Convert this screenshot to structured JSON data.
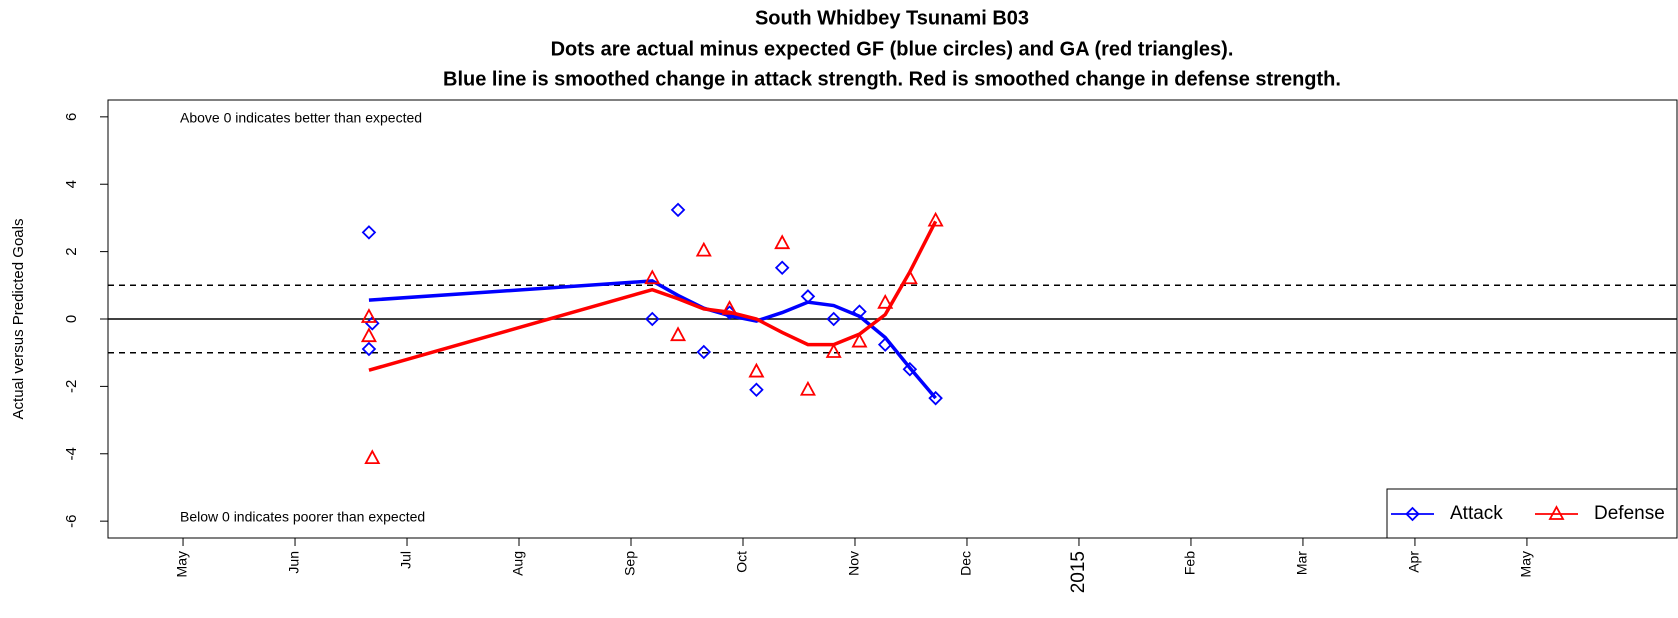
{
  "chart_data": {
    "type": "line",
    "title": "South Whidbey Tsunami B03",
    "subtitle": [
      "Dots are actual minus expected GF (blue circles) and GA (red triangles).",
      "Blue line is smoothed change in attack strength. Red is smoothed change in defense strength."
    ],
    "y_label": "Actual versus Predicted Goals",
    "annotations": [
      "Above 0 indicates better than expected",
      "Below 0 indicates poorer than expected"
    ],
    "xlim": [
      -0.67,
      13.34
    ],
    "ylim": [
      -6.5,
      6.5
    ],
    "xticks": [
      {
        "value": 0,
        "label": "May"
      },
      {
        "value": 1,
        "label": "Jun"
      },
      {
        "value": 2,
        "label": "Jul"
      },
      {
        "value": 3,
        "label": "Aug"
      },
      {
        "value": 4,
        "label": "Sep"
      },
      {
        "value": 5,
        "label": "Oct"
      },
      {
        "value": 6,
        "label": "Nov"
      },
      {
        "value": 7,
        "label": "Dec"
      },
      {
        "value": 8,
        "label": "2015"
      },
      {
        "value": 9,
        "label": "Feb"
      },
      {
        "value": 10,
        "label": "Mar"
      },
      {
        "value": 11,
        "label": "Apr"
      },
      {
        "value": 12,
        "label": "May"
      }
    ],
    "yticks": [
      -6,
      -4,
      -2,
      0,
      2,
      4,
      6
    ],
    "hlines": [
      {
        "value": 0,
        "style": "solid"
      },
      {
        "value": 1,
        "style": "dashed"
      },
      {
        "value": -1,
        "style": "dashed"
      }
    ],
    "legend": "bottom-right",
    "series": [
      {
        "name": "Attack",
        "color": "#0000ff",
        "marker": "diamond",
        "x": [
          1.66,
          4.19,
          4.42,
          4.65,
          4.88,
          5.12,
          5.35,
          5.58,
          5.81,
          6.04,
          6.27,
          6.49,
          6.72
        ],
        "values": [
          0.56,
          1.13,
          0.7,
          0.32,
          0.1,
          -0.06,
          0.19,
          0.5,
          0.4,
          0.08,
          -0.55,
          -1.45,
          -2.35
        ],
        "points_x": [
          1.66,
          1.69,
          1.66,
          4.19,
          4.42,
          4.65,
          4.88,
          5.12,
          5.35,
          5.58,
          5.81,
          6.04,
          6.27,
          6.49,
          6.72
        ],
        "points": [
          2.57,
          -0.13,
          -0.89,
          0,
          3.24,
          -0.98,
          0.19,
          -2.1,
          1.52,
          0.67,
          0,
          0.22,
          -0.76,
          -1.49,
          -2.35
        ]
      },
      {
        "name": "Defense",
        "color": "#ff0000",
        "marker": "triangle",
        "x": [
          1.66,
          4.19,
          4.42,
          4.65,
          4.88,
          5.12,
          5.35,
          5.58,
          5.81,
          6.04,
          6.27,
          6.49,
          6.72
        ],
        "values": [
          -1.52,
          0.87,
          0.6,
          0.3,
          0.2,
          0,
          -0.4,
          -0.76,
          -0.76,
          -0.45,
          0.13,
          1.4,
          2.9
        ],
        "points_x": [
          1.66,
          1.66,
          1.69,
          4.19,
          4.42,
          4.65,
          4.88,
          5.12,
          5.35,
          5.58,
          5.81,
          6.04,
          6.27,
          6.49,
          6.72
        ],
        "points": [
          0.06,
          -0.51,
          -4.13,
          1.21,
          -0.48,
          2.03,
          0.3,
          -1.56,
          2.25,
          -2.1,
          -0.98,
          -0.67,
          0.48,
          1.21,
          2.92
        ]
      }
    ]
  }
}
